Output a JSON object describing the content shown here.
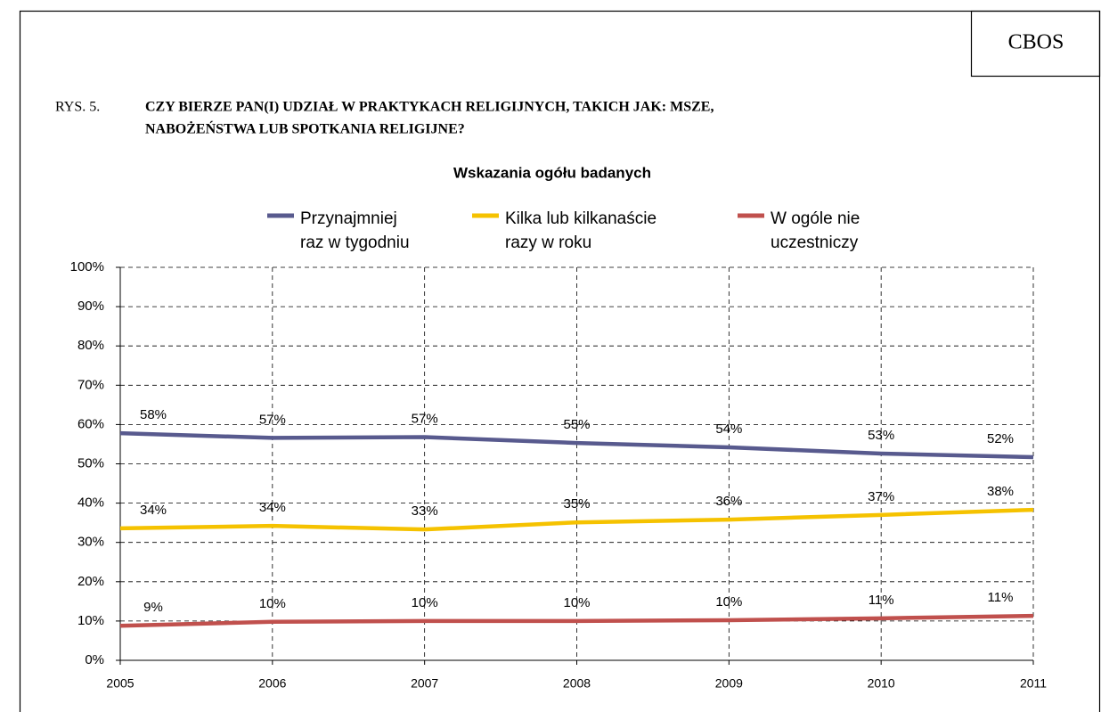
{
  "source": "CBOS",
  "figure_label": "RYS. 5.",
  "title_lines": [
    "CZY BIERZE PAN(I) UDZIAŁ W PRAKTYKACH RELIGIJNYCH, TAKICH JAK: MSZE,",
    "NABOŻEŃSTWA LUB SPOTKANIA RELIGIJNE?"
  ],
  "chart_data": {
    "type": "line",
    "title": "Wskazania ogółu badanych",
    "categories": [
      "2005",
      "2006",
      "2007",
      "2008",
      "2009",
      "2010",
      "2011"
    ],
    "series": [
      {
        "name": "Przynajmniej\nraz w tygodniu",
        "color": "#585a8e",
        "values": [
          57.8,
          56.6,
          56.8,
          55.3,
          54.2,
          52.6,
          51.7
        ],
        "value_labels": [
          "58%",
          "57%",
          "57%",
          "55%",
          "54%",
          "53%",
          "52%"
        ]
      },
      {
        "name": "Kilka lub kilkanaście\nrazy w roku",
        "color": "#f5c200",
        "values": [
          33.6,
          34.2,
          33.3,
          35.1,
          35.8,
          37.0,
          38.3
        ],
        "value_labels": [
          "34%",
          "34%",
          "33%",
          "35%",
          "36%",
          "37%",
          "38%"
        ]
      },
      {
        "name": "W ogóle nie\nuczestniczy",
        "color": "#c0504d",
        "values": [
          8.8,
          9.8,
          10.0,
          10.0,
          10.2,
          10.7,
          11.3
        ],
        "value_labels": [
          "9%",
          "10%",
          "10%",
          "10%",
          "10%",
          "11%",
          "11%"
        ]
      }
    ],
    "ylim": [
      0,
      100
    ],
    "yticks": [
      {
        "value": 0,
        "label": "0%"
      },
      {
        "value": 10,
        "label": "10%"
      },
      {
        "value": 20,
        "label": "20%"
      },
      {
        "value": 30,
        "label": "30%"
      },
      {
        "value": 40,
        "label": "40%"
      },
      {
        "value": 50,
        "label": "50%"
      },
      {
        "value": 60,
        "label": "60%"
      },
      {
        "value": 70,
        "label": "70%"
      },
      {
        "value": 80,
        "label": "80%"
      },
      {
        "value": 90,
        "label": "90%"
      },
      {
        "value": 100,
        "label": "100%"
      }
    ],
    "grid": true,
    "legend": "top"
  }
}
